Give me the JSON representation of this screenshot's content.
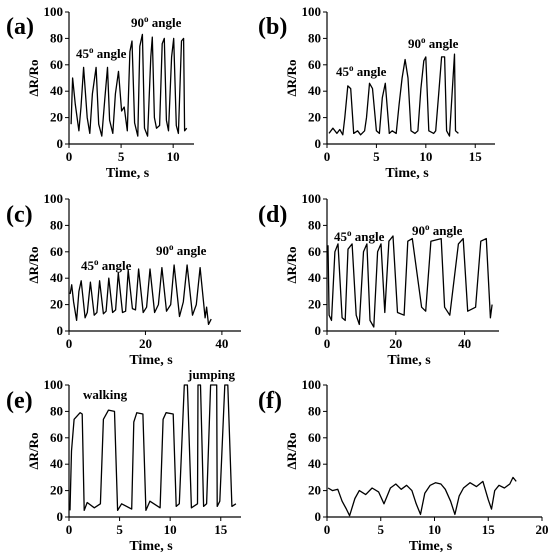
{
  "chart_data": [
    {
      "panel": "(a)",
      "type": "line",
      "xlabel": "Time, s",
      "ylabel": "ΔR/Ro",
      "xlim": [
        0,
        12
      ],
      "ylim": [
        0,
        100
      ],
      "xticks": [
        0,
        5,
        10
      ],
      "yticks": [
        0,
        20,
        40,
        60,
        80,
        100
      ],
      "annotations": [
        {
          "text": "45",
          "sup": "o",
          "rest": " angle"
        },
        {
          "text": "90",
          "sup": "o",
          "rest": " angle"
        }
      ],
      "series": [
        {
          "x": [
            0.2,
            0.35,
            0.6,
            0.95,
            1.15,
            1.4,
            1.75,
            2.0,
            2.25,
            2.6,
            2.85,
            3.15,
            3.45,
            3.7,
            3.9,
            4.2,
            4.45,
            4.75,
            5.05,
            5.3,
            5.6,
            5.85,
            6.05,
            6.3,
            6.6,
            6.8,
            7.05,
            7.25,
            7.55,
            7.85,
            8.0,
            8.2,
            8.4,
            8.7,
            8.95,
            9.15,
            9.35,
            9.55,
            9.85,
            10.05,
            10.3,
            10.5,
            10.8,
            11.0,
            11.1,
            11.3
          ],
          "y": [
            15,
            50,
            30,
            10,
            28,
            58,
            20,
            8,
            38,
            58,
            15,
            6,
            35,
            58,
            18,
            8,
            38,
            55,
            25,
            28,
            10,
            70,
            78,
            16,
            6,
            74,
            83,
            12,
            6,
            66,
            81,
            20,
            12,
            14,
            76,
            80,
            18,
            10,
            66,
            80,
            14,
            8,
            78,
            80,
            10,
            12
          ]
        }
      ]
    },
    {
      "panel": "(b)",
      "type": "line",
      "xlabel": "Time, s",
      "ylabel": "ΔR/Ro",
      "xlim": [
        0,
        17
      ],
      "ylim": [
        0,
        100
      ],
      "xticks": [
        0,
        5,
        10,
        15
      ],
      "yticks": [
        0,
        20,
        40,
        60,
        80,
        100
      ],
      "annotations": [
        {
          "text": "45",
          "sup": "o",
          "rest": " angle"
        },
        {
          "text": "90",
          "sup": "o",
          "rest": " angle"
        }
      ],
      "series": [
        {
          "x": [
            0.2,
            0.6,
            1.0,
            1.3,
            1.6,
            1.8,
            2.1,
            2.4,
            2.7,
            3.1,
            3.4,
            3.8,
            4.0,
            4.3,
            4.6,
            5.0,
            5.3,
            5.6,
            5.9,
            6.3,
            6.6,
            7.0,
            7.3,
            7.6,
            7.9,
            8.2,
            8.5,
            8.9,
            9.2,
            9.5,
            9.8,
            10.0,
            10.3,
            10.8,
            11.0,
            11.3,
            11.6,
            11.9,
            12.1,
            12.4,
            12.9,
            13.0,
            13.3
          ],
          "y": [
            8,
            12,
            8,
            11,
            7,
            20,
            44,
            42,
            8,
            10,
            7,
            10,
            20,
            46,
            42,
            10,
            8,
            35,
            46,
            8,
            10,
            8,
            30,
            50,
            64,
            50,
            10,
            8,
            10,
            42,
            63,
            66,
            10,
            8,
            10,
            38,
            66,
            66,
            10,
            6,
            68,
            10,
            8
          ]
        }
      ]
    },
    {
      "panel": "(c)",
      "type": "line",
      "xlabel": "Time, s",
      "ylabel": "ΔR/Ro",
      "xlim": [
        0,
        45
      ],
      "ylim": [
        0,
        100
      ],
      "xticks": [
        0,
        20,
        40
      ],
      "yticks": [
        0,
        20,
        40,
        60,
        80,
        100
      ],
      "annotations": [
        {
          "text": "45",
          "sup": "o",
          "rest": " angle"
        },
        {
          "text": "90",
          "sup": "o",
          "rest": " angle"
        }
      ],
      "series": [
        {
          "x": [
            0.3,
            0.7,
            1.2,
            2.0,
            2.6,
            3.2,
            4.2,
            4.8,
            5.6,
            6.6,
            7.3,
            8.0,
            9.0,
            9.7,
            10.4,
            11.4,
            12.2,
            12.9,
            14.0,
            14.8,
            15.5,
            16.6,
            17.4,
            18.2,
            19.4,
            20.3,
            21.2,
            22.4,
            23.4,
            24.3,
            25.5,
            26.6,
            27.5,
            28.9,
            29.9,
            30.9,
            32.3,
            33.3,
            34.3,
            35.6,
            36.0,
            36.5,
            37.2
          ],
          "y": [
            28,
            35,
            22,
            8,
            30,
            38,
            10,
            14,
            37,
            12,
            14,
            38,
            13,
            15,
            40,
            14,
            16,
            44,
            14,
            15,
            46,
            17,
            16,
            47,
            14,
            18,
            47,
            14,
            20,
            48,
            15,
            20,
            50,
            11,
            22,
            50,
            12,
            20,
            48,
            10,
            18,
            5,
            9
          ]
        }
      ]
    },
    {
      "panel": "(d)",
      "type": "line",
      "xlabel": "Time, s",
      "ylabel": "ΔR/Ro",
      "xlim": [
        0,
        50
      ],
      "ylim": [
        0,
        100
      ],
      "xticks": [
        0,
        20,
        40
      ],
      "yticks": [
        0,
        20,
        40,
        60,
        80,
        100
      ],
      "annotations": [
        {
          "text": "45",
          "sup": "o",
          "rest": " angle"
        },
        {
          "text": "90",
          "sup": "o",
          "rest": " angle"
        }
      ],
      "series": [
        {
          "x": [
            0.3,
            0.6,
            1.3,
            2.3,
            3.2,
            4.4,
            5.3,
            6.1,
            7.3,
            8.5,
            9.4,
            10.6,
            11.6,
            12.5,
            13.6,
            14.7,
            15.7,
            16.8,
            18.0,
            19.2,
            20.5,
            22.4,
            23.5,
            24.8,
            27.5,
            28.7,
            30.2,
            33.2,
            34.2,
            35.7,
            38.2,
            39.6,
            40.9,
            43.2,
            44.7,
            46.3,
            47.5,
            48.0
          ],
          "y": [
            65,
            12,
            8,
            60,
            66,
            10,
            8,
            62,
            66,
            12,
            5,
            60,
            66,
            8,
            3,
            60,
            66,
            14,
            68,
            72,
            14,
            12,
            68,
            70,
            18,
            15,
            68,
            70,
            18,
            12,
            66,
            70,
            15,
            18,
            68,
            70,
            10,
            20
          ]
        }
      ]
    },
    {
      "panel": "(e)",
      "type": "line",
      "xlabel": "Time, s",
      "ylabel": "ΔR/Ro",
      "xlim": [
        0,
        17
      ],
      "ylim": [
        0,
        100
      ],
      "xticks": [
        0,
        5,
        10,
        15
      ],
      "yticks": [
        0,
        20,
        40,
        60,
        80,
        100
      ],
      "annotations": [
        {
          "text": "walking"
        },
        {
          "text": "jumping"
        }
      ],
      "series": [
        {
          "x": [
            0.1,
            0.25,
            0.5,
            1.1,
            1.3,
            1.5,
            1.8,
            2.5,
            3.1,
            3.4,
            3.9,
            4.5,
            4.8,
            5.2,
            6.2,
            6.4,
            6.7,
            7.3,
            7.6,
            8.0,
            9.0,
            9.3,
            9.6,
            10.3,
            10.6,
            10.9,
            11.4,
            11.7,
            12.1,
            12.7,
            12.75,
            13.0,
            13.3,
            13.6,
            14.0,
            14.6,
            14.65,
            14.9,
            15.4,
            15.7,
            16.1,
            16.5
          ],
          "y": [
            5,
            50,
            74,
            79,
            78,
            5,
            11,
            7,
            10,
            74,
            81,
            80,
            5,
            10,
            6,
            72,
            79,
            78,
            5,
            12,
            7,
            74,
            79,
            78,
            8,
            10,
            100,
            100,
            7,
            10,
            100,
            100,
            8,
            10,
            100,
            100,
            8,
            12,
            100,
            100,
            8,
            10
          ]
        }
      ]
    },
    {
      "panel": "(f)",
      "type": "line",
      "xlabel": "Time, s",
      "ylabel": "ΔR/Ro",
      "xlim": [
        0,
        20
      ],
      "ylim": [
        0,
        100
      ],
      "xticks": [
        0,
        5,
        10,
        15,
        20
      ],
      "yticks": [
        0,
        20,
        40,
        60,
        80,
        100
      ],
      "annotations": [],
      "series": [
        {
          "x": [
            0.1,
            0.5,
            1.0,
            1.4,
            1.8,
            2.1,
            2.6,
            3.0,
            3.6,
            4.2,
            4.8,
            5.3,
            5.9,
            6.4,
            6.9,
            7.4,
            7.9,
            8.3,
            8.7,
            9.1,
            9.6,
            10.1,
            10.6,
            11.0,
            11.5,
            11.9,
            12.3,
            12.7,
            13.3,
            13.9,
            14.5,
            15.0,
            15.3,
            15.6,
            16.0,
            16.5,
            17.0,
            17.3,
            17.6
          ],
          "y": [
            22,
            20,
            21,
            12,
            6,
            1,
            14,
            20,
            17,
            22,
            19,
            10,
            22,
            25,
            21,
            24,
            20,
            10,
            2,
            18,
            24,
            26,
            25,
            21,
            12,
            2,
            16,
            22,
            26,
            23,
            27,
            13,
            6,
            20,
            24,
            22,
            25,
            30,
            27
          ]
        }
      ]
    }
  ]
}
